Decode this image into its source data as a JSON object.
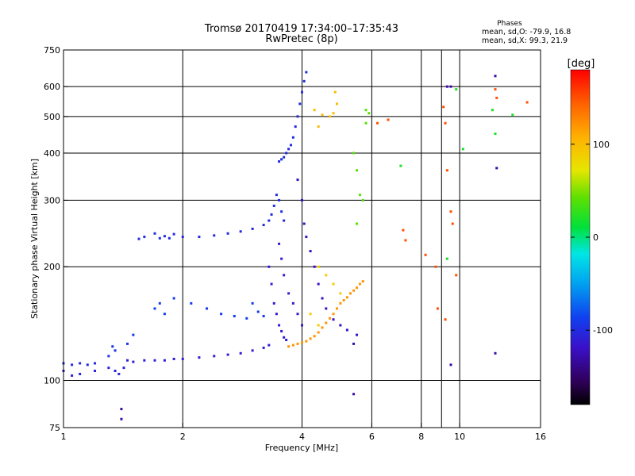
{
  "title_line1": "Tromsø 20170419 17:34:00–17:35:43",
  "title_line2": "RwPretec (8p)",
  "phase_info": {
    "heading": "Phases",
    "line_o": "mean, sd,O: -79.9, 16.8",
    "line_x": "mean, sd,X:  99.3, 21.9"
  },
  "colorbar": {
    "unit_label": "[deg]",
    "range": [
      -180,
      180
    ],
    "ticks": [
      100,
      0,
      -100
    ]
  },
  "chart_data": {
    "type": "scatter",
    "xlabel": "Frequency [MHz]",
    "ylabel": "Stationary phase Virtual Height [km]",
    "xscale": "log",
    "yscale": "log",
    "xlim": [
      1,
      16
    ],
    "ylim": [
      75,
      750
    ],
    "xticks": [
      1,
      2,
      4,
      6,
      8,
      10,
      16
    ],
    "yticks": [
      75,
      100,
      200,
      300,
      400,
      500,
      600,
      750
    ],
    "x_gridlines": [
      2,
      4,
      6,
      8,
      9,
      10
    ],
    "y_gridlines": [
      100,
      200,
      300,
      400,
      500,
      600
    ],
    "grid": true,
    "color_encodes": "phase [deg]",
    "traces": [
      {
        "phase": -100,
        "points": [
          [
            1.0,
            111
          ],
          [
            1.05,
            110
          ],
          [
            1.1,
            111
          ],
          [
            1.15,
            110
          ],
          [
            1.2,
            111
          ]
        ]
      },
      {
        "phase": -105,
        "points": [
          [
            1.0,
            106
          ],
          [
            1.05,
            103
          ],
          [
            1.1,
            104
          ],
          [
            1.2,
            106
          ],
          [
            1.3,
            108
          ],
          [
            1.35,
            106
          ],
          [
            1.38,
            104
          ],
          [
            1.42,
            108
          ]
        ]
      },
      {
        "phase": -110,
        "points": [
          [
            1.45,
            113
          ],
          [
            1.5,
            112
          ],
          [
            1.6,
            113
          ],
          [
            1.7,
            113
          ],
          [
            1.8,
            113
          ],
          [
            1.9,
            114
          ],
          [
            2.0,
            114
          ],
          [
            2.2,
            115
          ],
          [
            2.4,
            116
          ],
          [
            2.6,
            117
          ],
          [
            2.8,
            118
          ],
          [
            3.0,
            120
          ],
          [
            3.2,
            122
          ],
          [
            3.3,
            124
          ]
        ]
      },
      {
        "phase": -95,
        "points": [
          [
            1.3,
            116
          ],
          [
            1.33,
            123
          ],
          [
            1.35,
            120
          ],
          [
            1.45,
            125
          ],
          [
            1.5,
            132
          ]
        ]
      },
      {
        "phase": -100,
        "points": [
          [
            1.55,
            237
          ],
          [
            1.6,
            240
          ],
          [
            1.7,
            245
          ],
          [
            1.75,
            238
          ],
          [
            1.8,
            241
          ],
          [
            1.85,
            238
          ],
          [
            1.9,
            244
          ],
          [
            2.0,
            240
          ],
          [
            2.2,
            240
          ],
          [
            2.4,
            242
          ],
          [
            2.6,
            245
          ],
          [
            2.8,
            248
          ],
          [
            3.0,
            252
          ],
          [
            3.2,
            258
          ],
          [
            3.3,
            265
          ],
          [
            3.35,
            275
          ],
          [
            3.4,
            290
          ],
          [
            3.45,
            310
          ],
          [
            3.5,
            300
          ],
          [
            3.55,
            280
          ],
          [
            3.6,
            265
          ]
        ]
      },
      {
        "phase": -110,
        "points": [
          [
            3.3,
            200
          ],
          [
            3.35,
            180
          ],
          [
            3.4,
            160
          ],
          [
            3.45,
            150
          ],
          [
            3.5,
            140
          ],
          [
            3.55,
            135
          ],
          [
            3.6,
            130
          ],
          [
            3.65,
            128
          ],
          [
            3.5,
            230
          ],
          [
            3.55,
            210
          ],
          [
            3.6,
            190
          ],
          [
            3.7,
            170
          ],
          [
            3.8,
            160
          ],
          [
            3.9,
            150
          ],
          [
            4.0,
            140
          ]
        ]
      },
      {
        "phase": -100,
        "points": [
          [
            3.5,
            380
          ],
          [
            3.55,
            385
          ],
          [
            3.6,
            390
          ],
          [
            3.65,
            400
          ],
          [
            3.7,
            410
          ],
          [
            3.75,
            420
          ],
          [
            3.8,
            440
          ],
          [
            3.85,
            470
          ],
          [
            3.9,
            500
          ],
          [
            3.95,
            540
          ],
          [
            4.0,
            580
          ],
          [
            4.05,
            620
          ],
          [
            4.1,
            655
          ]
        ]
      },
      {
        "phase": -120,
        "points": [
          [
            3.9,
            340
          ],
          [
            4.0,
            300
          ],
          [
            4.05,
            260
          ],
          [
            4.1,
            240
          ],
          [
            4.2,
            220
          ],
          [
            4.3,
            200
          ],
          [
            4.4,
            180
          ],
          [
            4.5,
            165
          ],
          [
            4.6,
            155
          ],
          [
            4.8,
            145
          ],
          [
            5.0,
            140
          ],
          [
            5.2,
            136
          ],
          [
            5.5,
            132
          ]
        ]
      },
      {
        "phase": -90,
        "points": [
          [
            2.5,
            150
          ],
          [
            2.7,
            148
          ],
          [
            2.9,
            146
          ],
          [
            3.0,
            160
          ],
          [
            3.1,
            152
          ],
          [
            3.2,
            148
          ],
          [
            1.7,
            155
          ],
          [
            1.75,
            160
          ],
          [
            1.8,
            150
          ],
          [
            1.9,
            165
          ],
          [
            2.1,
            160
          ],
          [
            2.3,
            155
          ]
        ]
      },
      {
        "phase": 120,
        "points": [
          [
            3.7,
            123
          ],
          [
            3.8,
            124
          ],
          [
            3.9,
            125
          ],
          [
            4.0,
            126
          ],
          [
            4.1,
            127
          ],
          [
            4.2,
            129
          ],
          [
            4.3,
            131
          ],
          [
            4.4,
            134
          ],
          [
            4.5,
            138
          ],
          [
            4.6,
            142
          ],
          [
            4.7,
            146
          ],
          [
            4.8,
            150
          ],
          [
            4.9,
            155
          ],
          [
            5.0,
            160
          ],
          [
            5.1,
            163
          ],
          [
            5.2,
            166
          ],
          [
            5.3,
            170
          ],
          [
            5.4,
            173
          ],
          [
            5.5,
            176
          ],
          [
            5.6,
            180
          ],
          [
            5.7,
            183
          ]
        ]
      },
      {
        "phase": 100,
        "points": [
          [
            4.3,
            520
          ],
          [
            4.5,
            505
          ],
          [
            4.7,
            500
          ],
          [
            4.8,
            510
          ],
          [
            4.9,
            540
          ],
          [
            4.85,
            580
          ],
          [
            4.4,
            470
          ]
        ]
      },
      {
        "phase": 90,
        "points": [
          [
            4.4,
            200
          ],
          [
            4.6,
            190
          ],
          [
            4.8,
            180
          ],
          [
            5.0,
            170
          ],
          [
            4.2,
            150
          ],
          [
            4.4,
            140
          ]
        ]
      },
      {
        "phase": 40,
        "points": [
          [
            5.4,
            400
          ],
          [
            5.5,
            360
          ],
          [
            5.6,
            310
          ],
          [
            5.7,
            300
          ],
          [
            5.5,
            260
          ],
          [
            5.8,
            520
          ],
          [
            5.9,
            510
          ],
          [
            5.8,
            480
          ]
        ]
      },
      {
        "phase": 150,
        "points": [
          [
            6.2,
            480
          ],
          [
            6.6,
            490
          ],
          [
            7.2,
            250
          ],
          [
            7.3,
            235
          ],
          [
            8.2,
            215
          ],
          [
            8.7,
            200
          ],
          [
            8.8,
            155
          ],
          [
            9.1,
            530
          ],
          [
            9.2,
            480
          ],
          [
            9.3,
            360
          ],
          [
            9.5,
            280
          ],
          [
            9.6,
            260
          ],
          [
            9.8,
            190
          ],
          [
            9.2,
            145
          ],
          [
            12.3,
            590
          ],
          [
            12.4,
            560
          ],
          [
            14.8,
            545
          ]
        ]
      },
      {
        "phase": -130,
        "points": [
          [
            5.4,
            92
          ],
          [
            5.4,
            125
          ],
          [
            9.3,
            600
          ],
          [
            9.5,
            600
          ],
          [
            12.3,
            640
          ],
          [
            12.4,
            365
          ],
          [
            12.3,
            118
          ],
          [
            9.5,
            110
          ],
          [
            1.4,
            84
          ],
          [
            1.4,
            79
          ]
        ]
      },
      {
        "phase": 20,
        "points": [
          [
            9.3,
            210
          ],
          [
            9.8,
            590
          ],
          [
            10.2,
            410
          ],
          [
            12.1,
            520
          ],
          [
            12.3,
            450
          ],
          [
            13.6,
            505
          ],
          [
            7.1,
            370
          ]
        ]
      }
    ]
  }
}
